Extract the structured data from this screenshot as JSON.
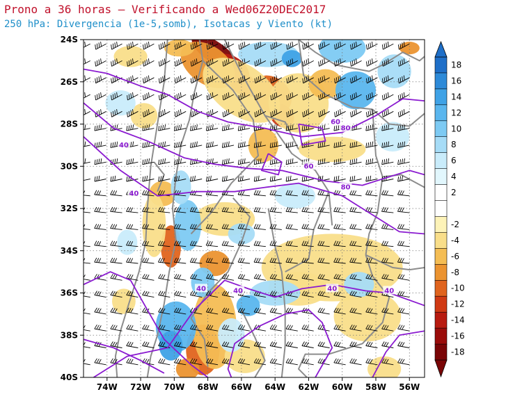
{
  "title": "Prono a 36 horas — Verificando a Wed06Z20DEC2017",
  "subtitle": "250 hPa: Divergencia (1e-5,somb), Isotacas y Viento (kt)",
  "map": {
    "lat_labels": [
      "24S",
      "26S",
      "28S",
      "30S",
      "32S",
      "34S",
      "36S",
      "38S",
      "40S"
    ],
    "lon_labels": [
      "74W",
      "72W",
      "70W",
      "68W",
      "66W",
      "64W",
      "62W",
      "60W",
      "58W",
      "56W"
    ],
    "lat_range": [
      -40,
      -24
    ],
    "lon_range": [
      -75.4,
      -55.1
    ],
    "grid": "dotted",
    "isotach_labels": [
      "40",
      "60",
      "80",
      "60",
      "80",
      "40",
      "40",
      "40",
      "40",
      "40"
    ]
  },
  "colorbar": {
    "labels": [
      "18",
      "16",
      "14",
      "12",
      "10",
      "8",
      "6",
      "4",
      "2",
      "-2",
      "-4",
      "-6",
      "-8",
      "-10",
      "-12",
      "-14",
      "-16",
      "-18"
    ],
    "colors": [
      "#1f6fc8",
      "#2d8ad8",
      "#3fa2e6",
      "#5ab6ee",
      "#7dcaf3",
      "#a6dcf7",
      "#c9ecfb",
      "#e2f7fd",
      "#ffffff",
      "#ffffff",
      "#fdf3b8",
      "#f9de8a",
      "#f4bd54",
      "#eb9330",
      "#e0641e",
      "#d03a14",
      "#b81b10",
      "#9a0c0a",
      "#7a0506"
    ]
  },
  "colors": {
    "title": "#c0102a",
    "subtitle": "#1f8fc9",
    "isotach": "#8a1ad0",
    "border": "#8c8c8c"
  }
}
